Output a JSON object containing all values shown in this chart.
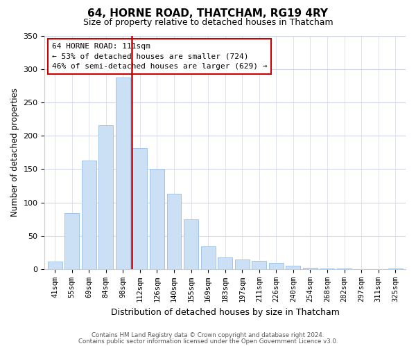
{
  "title": "64, HORNE ROAD, THATCHAM, RG19 4RY",
  "subtitle": "Size of property relative to detached houses in Thatcham",
  "xlabel": "Distribution of detached houses by size in Thatcham",
  "ylabel": "Number of detached properties",
  "bar_labels": [
    "41sqm",
    "55sqm",
    "69sqm",
    "84sqm",
    "98sqm",
    "112sqm",
    "126sqm",
    "140sqm",
    "155sqm",
    "169sqm",
    "183sqm",
    "197sqm",
    "211sqm",
    "226sqm",
    "240sqm",
    "254sqm",
    "268sqm",
    "282sqm",
    "297sqm",
    "311sqm",
    "325sqm"
  ],
  "bar_values": [
    11,
    84,
    163,
    216,
    287,
    181,
    150,
    113,
    75,
    34,
    18,
    14,
    12,
    9,
    5,
    2,
    1,
    1,
    0,
    0,
    1
  ],
  "bar_color": "#cce0f5",
  "bar_edge_color": "#a0c4e8",
  "highlight_index": 4,
  "highlight_color": "#cc0000",
  "annotation_title": "64 HORNE ROAD: 111sqm",
  "annotation_line1": "← 53% of detached houses are smaller (724)",
  "annotation_line2": "46% of semi-detached houses are larger (629) →",
  "ylim": [
    0,
    350
  ],
  "yticks": [
    0,
    50,
    100,
    150,
    200,
    250,
    300,
    350
  ],
  "footnote1": "Contains HM Land Registry data © Crown copyright and database right 2024.",
  "footnote2": "Contains public sector information licensed under the Open Government Licence v3.0.",
  "bg_color": "#ffffff",
  "grid_color": "#d0d8e8"
}
